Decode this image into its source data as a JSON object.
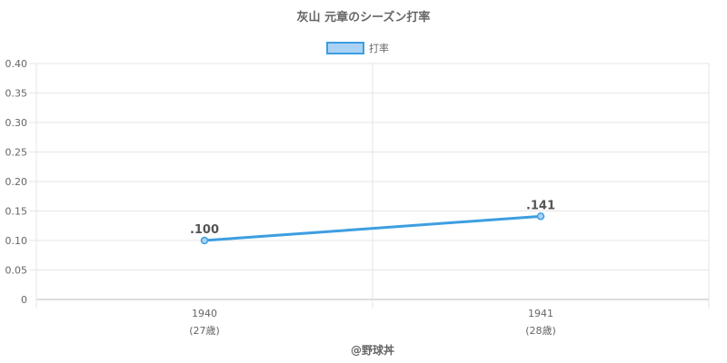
{
  "chart_data": {
    "type": "line",
    "title": "灰山 元章のシーズン打率",
    "legend": {
      "position": "top",
      "label": "打率"
    },
    "x": [
      "1940",
      "1941"
    ],
    "x_sublabels": [
      "(27歳)",
      "(28歳)"
    ],
    "series": [
      {
        "name": "打率",
        "values": [
          0.1,
          0.141
        ],
        "labels": [
          ".100",
          ".141"
        ]
      }
    ],
    "ylim": [
      0,
      0.4
    ],
    "yticks": [
      "0.40",
      "0.35",
      "0.30",
      "0.25",
      "0.20",
      "0.15",
      "0.10",
      "0.05",
      "0"
    ],
    "grid": true
  },
  "footer": "@野球丼",
  "colors": {
    "line": "#3d9ee0",
    "legend_fill": "#a9d2f5",
    "grid": "#e6e6e6",
    "axis": "#bbbbbb"
  }
}
